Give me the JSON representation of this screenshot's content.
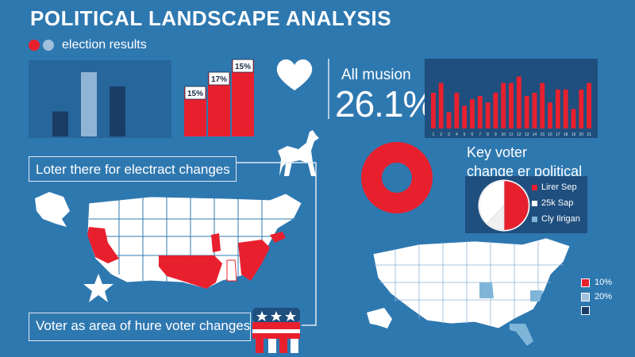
{
  "title": "POLITICAL LANDSCAPE ANALYSIS",
  "legend": {
    "label": "election results",
    "colors": [
      "#e8202e",
      "#9fc0dc"
    ]
  },
  "bar_chart_left": {
    "type": "bar",
    "values": [
      35,
      90,
      70
    ],
    "colors": [
      "#1a3d66",
      "#8fb4d6",
      "#1a3d66"
    ],
    "ylim": [
      0,
      100
    ]
  },
  "bar_chart_percent": {
    "type": "bar",
    "values": [
      15,
      17,
      15
    ],
    "labels": [
      "15%",
      "17%",
      "15%"
    ],
    "color": "#e8202e"
  },
  "caption_top": "Loter there for electract changes",
  "caption_bottom": "Voter as area of hure voter changes",
  "stat": {
    "heading": "All musion",
    "value": "26.1%"
  },
  "chart_data": {
    "type": "bar",
    "categories": [
      "1",
      "2",
      "3",
      "4",
      "5",
      "6",
      "7",
      "8",
      "9",
      "10",
      "11",
      "12",
      "13",
      "14",
      "15",
      "16",
      "17",
      "18",
      "19",
      "20",
      "21"
    ],
    "values": [
      55,
      70,
      25,
      55,
      35,
      45,
      50,
      40,
      55,
      70,
      70,
      80,
      50,
      55,
      70,
      40,
      60,
      60,
      30,
      60,
      70
    ],
    "color": "#e8202e",
    "ylim": [
      0,
      100
    ],
    "tick_labels": [
      "1",
      "2",
      "3",
      "4",
      "5",
      "6",
      "7",
      "8",
      "9",
      "10",
      "11",
      "12",
      "13",
      "14",
      "15",
      "16",
      "17",
      "18",
      "19",
      "20",
      "21"
    ]
  },
  "key_voter": {
    "line1": "Key voter",
    "line2": "change er political"
  },
  "pie": {
    "slices": [
      {
        "label": "Lirer Sep",
        "value": 50,
        "color": "#e8202e"
      },
      {
        "label": "25k Sap",
        "value": 12,
        "color": "#f0f0f0"
      },
      {
        "label": "Cly Ilrigan",
        "value": 38,
        "color": "#ffffff"
      }
    ],
    "legend_colors": [
      "#e8202e",
      "#ffffff",
      "#7fb5d8"
    ]
  },
  "map_legend": [
    {
      "label": "10%",
      "color": "#e8202e"
    },
    {
      "label": "20%",
      "color": "#9fc0dc"
    },
    {
      "label": "",
      "color": "#1a3d66"
    }
  ],
  "icons": {
    "heart": "heart-icon",
    "dog": "dog-icon",
    "star": "star-icon",
    "elephant": "elephant-icon",
    "donut": "donut-chart"
  }
}
